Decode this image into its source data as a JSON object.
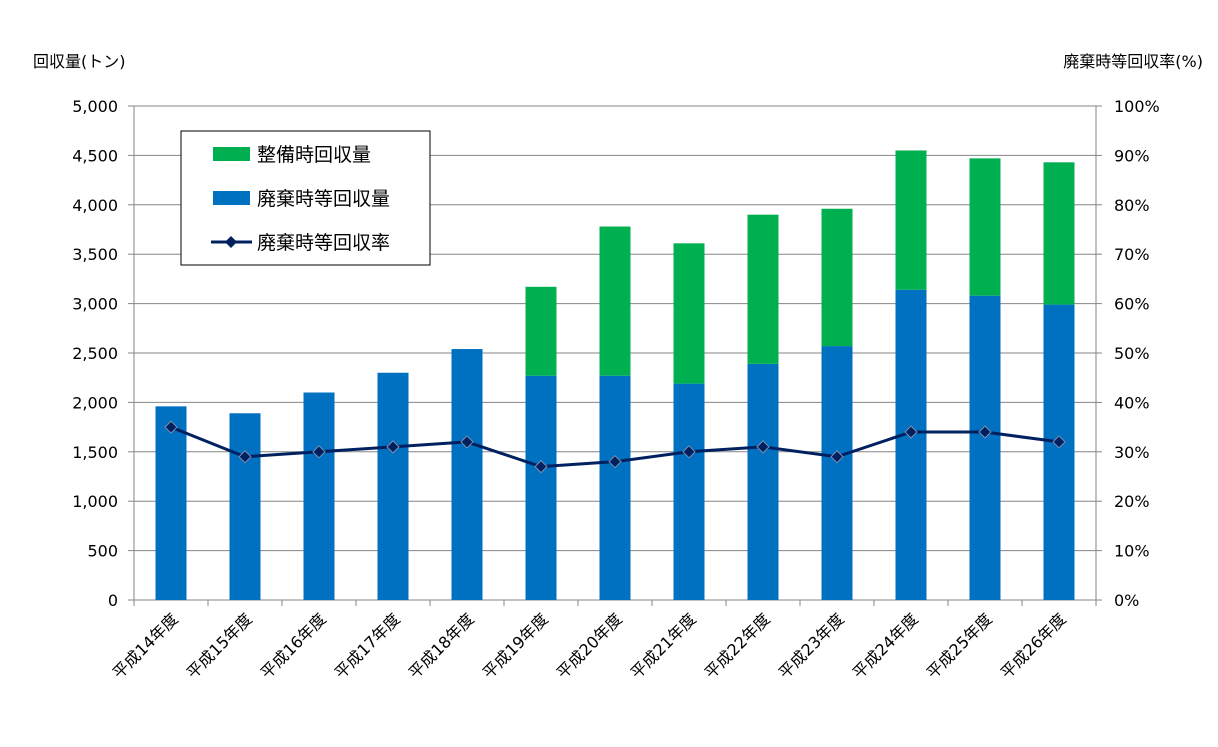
{
  "chart_data": {
    "type": "bar",
    "stacked": true,
    "categories": [
      "平成14年度",
      "平成15年度",
      "平成16年度",
      "平成17年度",
      "平成18年度",
      "平成19年度",
      "平成20年度",
      "平成21年度",
      "平成22年度",
      "平成23年度",
      "平成24年度",
      "平成25年度",
      "平成26年度"
    ],
    "series": [
      {
        "name": "廃棄時等回収量",
        "kind": "bar",
        "axis": "left",
        "color": "#0070C0",
        "values": [
          1960,
          1890,
          2100,
          2300,
          2540,
          2270,
          2270,
          2190,
          2390,
          2570,
          3140,
          3080,
          2990
        ]
      },
      {
        "name": "整備時回収量",
        "kind": "bar",
        "axis": "left",
        "color": "#00B050",
        "values": [
          0,
          0,
          0,
          0,
          0,
          900,
          1510,
          1420,
          1510,
          1390,
          1410,
          1390,
          1440
        ]
      },
      {
        "name": "廃棄時等回収率",
        "kind": "line",
        "axis": "right",
        "color": "#002060",
        "marker": "diamond",
        "values": [
          35,
          29,
          30,
          31,
          32,
          27,
          28,
          30,
          31,
          29,
          34,
          34,
          32
        ]
      }
    ],
    "ylabel": "回収量(トン)",
    "y2label": "廃棄時等回収率(%)",
    "ylim": [
      0,
      5000
    ],
    "y2lim": [
      0,
      100
    ],
    "yticks": [
      "0",
      "500",
      "1,000",
      "1,500",
      "2,000",
      "2,500",
      "3,000",
      "3,500",
      "4,000",
      "4,500",
      "5,000"
    ],
    "y2ticks": [
      "0%",
      "10%",
      "20%",
      "30%",
      "40%",
      "50%",
      "60%",
      "70%",
      "80%",
      "90%",
      "100%"
    ],
    "grid": true,
    "legend": {
      "placement": "top-left",
      "entries": [
        {
          "label": "整備時回収量",
          "color": "#00B050",
          "kind": "bar"
        },
        {
          "label": "廃棄時等回収量",
          "color": "#0070C0",
          "kind": "bar"
        },
        {
          "label": "廃棄時等回収率",
          "color": "#002060",
          "kind": "line"
        }
      ]
    }
  }
}
